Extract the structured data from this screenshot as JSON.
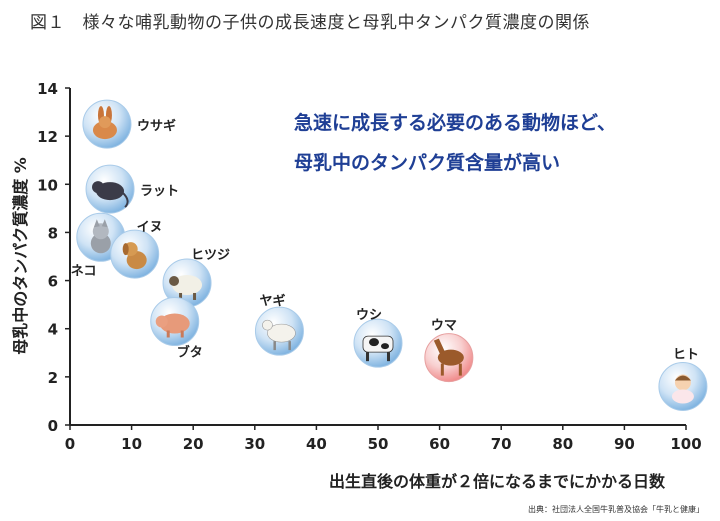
{
  "figure_title": "図１　様々な哺乳動物の子供の成長速度と母乳中タンパク質濃度の関係",
  "annotation": {
    "line1": "急速に成長する必要のある動物ほど、",
    "line2": "母乳中のタンパク質含量が高い"
  },
  "source": "出典：社団法人全国牛乳普及協会「牛乳と健康」",
  "colors": {
    "bubble": "#7fb3e0",
    "bubble_highlight": "#f08a8a",
    "highlight_label": "#d0202a",
    "annotation": "#1f3f95"
  },
  "chart_data": {
    "type": "scatter",
    "title": "",
    "xlabel": "出生直後の体重が２倍になるまでにかかる日数",
    "ylabel": "母乳中のタンパク質濃度 %",
    "xlim": [
      0,
      100
    ],
    "ylim": [
      0,
      14
    ],
    "xticks": [
      "0",
      "10",
      "20",
      "30",
      "40",
      "50",
      "60",
      "70",
      "80",
      "90",
      "100"
    ],
    "yticks": [
      "0",
      "2",
      "4",
      "6",
      "8",
      "10",
      "12",
      "14"
    ],
    "grid": false,
    "points": [
      {
        "label": "ウサギ",
        "x": 6,
        "y": 12.5,
        "highlight": false,
        "icon": "rabbit-icon"
      },
      {
        "label": "ラット",
        "x": 6.5,
        "y": 9.8,
        "highlight": false,
        "icon": "rat-icon"
      },
      {
        "label": "ネコ",
        "x": 5,
        "y": 7.8,
        "highlight": false,
        "icon": "cat-icon"
      },
      {
        "label": "イヌ",
        "x": 10.5,
        "y": 7.1,
        "highlight": false,
        "icon": "dog-icon"
      },
      {
        "label": "ヒツジ",
        "x": 19,
        "y": 5.9,
        "highlight": false,
        "icon": "sheep-icon"
      },
      {
        "label": "ブタ",
        "x": 17,
        "y": 4.3,
        "highlight": false,
        "icon": "pig-icon"
      },
      {
        "label": "ヤギ",
        "x": 34,
        "y": 3.9,
        "highlight": false,
        "icon": "goat-icon"
      },
      {
        "label": "ウシ",
        "x": 50,
        "y": 3.4,
        "highlight": false,
        "icon": "cow-icon"
      },
      {
        "label": "ウマ",
        "x": 61.5,
        "y": 2.8,
        "highlight": true,
        "icon": "horse-icon"
      },
      {
        "label": "ヒト",
        "x": 99.5,
        "y": 1.6,
        "highlight": false,
        "icon": "human-baby-icon"
      }
    ]
  }
}
